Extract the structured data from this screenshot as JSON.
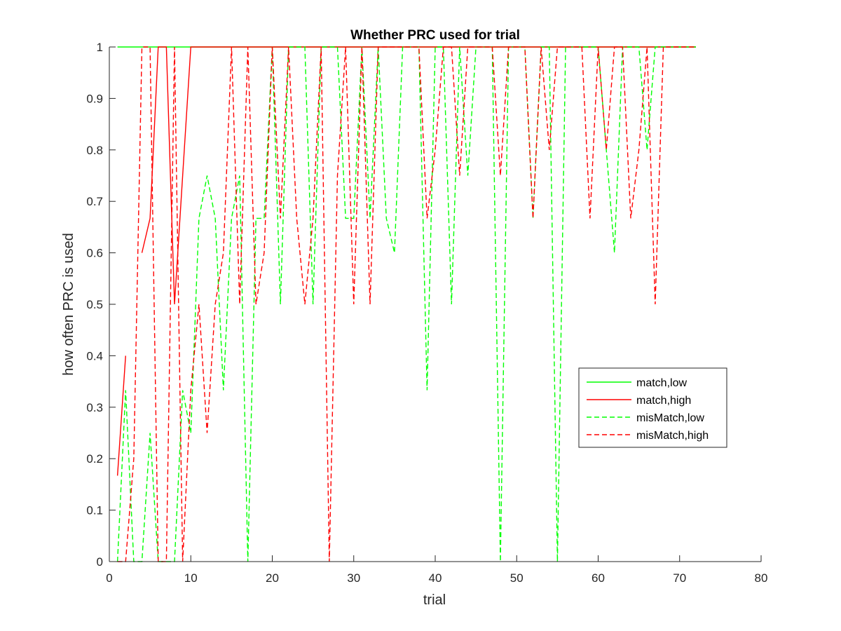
{
  "chart_data": {
    "type": "line",
    "title": "Whether PRC used for trial",
    "xlabel": "trial",
    "ylabel": "how often PRC is used",
    "xlim": [
      0,
      80
    ],
    "ylim": [
      0,
      1
    ],
    "xticks": [
      0,
      10,
      20,
      30,
      40,
      50,
      60,
      70,
      80
    ],
    "yticks": [
      0,
      0.1,
      0.2,
      0.3,
      0.4,
      0.5,
      0.6,
      0.7,
      0.8,
      0.9,
      1
    ],
    "grid": false,
    "legend_position": "right",
    "series": [
      {
        "name": "match,low",
        "color": "#00FF00",
        "dash": "solid",
        "points": [
          [
            1,
            1
          ],
          [
            2,
            1
          ],
          [
            3,
            1
          ],
          [
            4,
            1
          ],
          [
            5,
            1
          ],
          [
            6,
            1
          ],
          [
            7,
            1
          ],
          [
            8,
            1
          ],
          [
            9,
            1
          ],
          [
            10,
            1
          ],
          [
            12,
            1
          ],
          [
            14,
            1
          ],
          [
            16,
            1
          ],
          [
            18,
            1
          ],
          [
            20,
            1
          ],
          [
            22,
            1
          ],
          [
            24,
            1
          ],
          [
            26,
            1
          ],
          [
            28,
            1
          ],
          [
            30,
            1
          ],
          [
            32,
            1
          ],
          [
            34,
            1
          ],
          [
            36,
            1
          ],
          [
            38,
            1
          ],
          [
            40,
            1
          ],
          [
            42,
            1
          ],
          [
            44,
            1
          ],
          [
            46,
            1
          ],
          [
            48,
            1
          ],
          [
            50,
            1
          ],
          [
            52,
            1
          ],
          [
            54,
            1
          ],
          [
            56,
            1
          ],
          [
            58,
            1
          ],
          [
            60,
            1
          ],
          [
            62,
            1
          ],
          [
            64,
            1
          ],
          [
            66,
            1
          ],
          [
            68,
            1
          ],
          [
            70,
            1
          ],
          [
            72,
            1
          ]
        ]
      },
      {
        "name": "match,high",
        "color": "#FF0000",
        "dash": "solid",
        "points": [
          [
            1,
            0.167
          ],
          [
            2,
            0.4
          ],
          [
            null,
            null
          ],
          [
            4,
            0.6
          ],
          [
            5,
            0.667
          ],
          [
            6,
            1
          ],
          [
            7,
            1
          ],
          [
            8,
            0.5
          ],
          [
            9,
            0.75
          ],
          [
            10,
            1
          ],
          [
            11,
            1
          ],
          [
            12,
            1
          ],
          [
            14,
            1
          ],
          [
            16,
            1
          ],
          [
            18,
            1
          ],
          [
            20,
            1
          ],
          [
            22,
            1
          ],
          [
            24,
            1
          ],
          [
            26,
            1
          ],
          [
            28,
            1
          ],
          [
            30,
            1
          ],
          [
            32,
            1
          ],
          [
            34,
            1
          ],
          [
            36,
            1
          ],
          [
            38,
            1
          ],
          [
            40,
            1
          ],
          [
            42,
            1
          ],
          [
            44,
            1
          ],
          [
            46,
            1
          ],
          [
            48,
            1
          ],
          [
            50,
            1
          ],
          [
            52,
            1
          ],
          [
            54,
            1
          ],
          [
            56,
            1
          ],
          [
            58,
            1
          ],
          [
            60,
            1
          ],
          [
            62,
            1
          ],
          [
            64,
            1
          ],
          [
            66,
            1
          ],
          [
            68,
            1
          ],
          [
            70,
            1
          ],
          [
            72,
            1
          ]
        ]
      },
      {
        "name": "misMatch,low",
        "color": "#00FF00",
        "dash": "dashed",
        "points": [
          [
            1,
            0
          ],
          [
            2,
            0.333
          ],
          [
            3,
            0
          ],
          [
            4,
            0
          ],
          [
            5,
            0.25
          ],
          [
            6,
            0
          ],
          [
            7,
            0
          ],
          [
            8,
            0
          ],
          [
            9,
            0.333
          ],
          [
            10,
            0.25
          ],
          [
            11,
            0.667
          ],
          [
            12,
            0.75
          ],
          [
            13,
            0.667
          ],
          [
            14,
            0.333
          ],
          [
            15,
            0.667
          ],
          [
            16,
            0.75
          ],
          [
            17,
            0
          ],
          [
            18,
            0.667
          ],
          [
            19,
            0.667
          ],
          [
            20,
            1
          ],
          [
            21,
            0.5
          ],
          [
            22,
            1
          ],
          [
            23,
            1
          ],
          [
            24,
            1
          ],
          [
            25,
            0.5
          ],
          [
            26,
            1
          ],
          [
            27,
            1
          ],
          [
            28,
            1
          ],
          [
            29,
            0.667
          ],
          [
            30,
            0.667
          ],
          [
            31,
            1
          ],
          [
            32,
            0.667
          ],
          [
            33,
            1
          ],
          [
            34,
            0.667
          ],
          [
            35,
            0.6
          ],
          [
            36,
            1
          ],
          [
            37,
            1
          ],
          [
            38,
            1
          ],
          [
            39,
            0.333
          ],
          [
            40,
            1
          ],
          [
            41,
            1
          ],
          [
            42,
            0.5
          ],
          [
            43,
            1
          ],
          [
            44,
            0.75
          ],
          [
            45,
            1
          ],
          [
            46,
            1
          ],
          [
            47,
            1
          ],
          [
            48,
            0
          ],
          [
            49,
            1
          ],
          [
            50,
            1
          ],
          [
            51,
            1
          ],
          [
            52,
            0.667
          ],
          [
            53,
            1
          ],
          [
            54,
            1
          ],
          [
            55,
            0
          ],
          [
            56,
            1
          ],
          [
            57,
            1
          ],
          [
            58,
            1
          ],
          [
            59,
            1
          ],
          [
            60,
            1
          ],
          [
            61,
            0.8
          ],
          [
            62,
            0.6
          ],
          [
            63,
            1
          ],
          [
            64,
            1
          ],
          [
            65,
            1
          ],
          [
            66,
            0.8
          ],
          [
            67,
            1
          ],
          [
            68,
            1
          ],
          [
            69,
            1
          ],
          [
            70,
            1
          ],
          [
            71,
            1
          ],
          [
            72,
            1
          ]
        ]
      },
      {
        "name": "misMatch,high",
        "color": "#FF0000",
        "dash": "dashed",
        "points": [
          [
            1,
            0
          ],
          [
            2,
            0
          ],
          [
            3,
            0.2
          ],
          [
            4,
            1
          ],
          [
            5,
            1
          ],
          [
            6,
            0
          ],
          [
            7,
            0
          ],
          [
            8,
            1
          ],
          [
            9,
            0
          ],
          [
            10,
            0.333
          ],
          [
            11,
            0.5
          ],
          [
            12,
            0.25
          ],
          [
            13,
            0.5
          ],
          [
            14,
            0.6
          ],
          [
            15,
            1
          ],
          [
            16,
            0.5
          ],
          [
            17,
            1
          ],
          [
            18,
            0.5
          ],
          [
            19,
            0.6
          ],
          [
            20,
            1
          ],
          [
            21,
            0.667
          ],
          [
            22,
            1
          ],
          [
            23,
            0.667
          ],
          [
            24,
            0.5
          ],
          [
            25,
            0.667
          ],
          [
            26,
            1
          ],
          [
            27,
            0
          ],
          [
            28,
            0.75
          ],
          [
            29,
            1
          ],
          [
            30,
            0.5
          ],
          [
            31,
            1
          ],
          [
            32,
            0.5
          ],
          [
            33,
            1
          ],
          [
            34,
            1
          ],
          [
            35,
            1
          ],
          [
            36,
            1
          ],
          [
            37,
            1
          ],
          [
            38,
            1
          ],
          [
            39,
            0.667
          ],
          [
            40,
            0.8
          ],
          [
            41,
            1
          ],
          [
            42,
            1
          ],
          [
            43,
            0.75
          ],
          [
            44,
            1
          ],
          [
            45,
            1
          ],
          [
            46,
            1
          ],
          [
            47,
            1
          ],
          [
            48,
            0.75
          ],
          [
            49,
            1
          ],
          [
            50,
            1
          ],
          [
            51,
            1
          ],
          [
            52,
            0.667
          ],
          [
            53,
            1
          ],
          [
            54,
            0.8
          ],
          [
            55,
            1
          ],
          [
            56,
            1
          ],
          [
            57,
            1
          ],
          [
            58,
            1
          ],
          [
            59,
            0.667
          ],
          [
            60,
            1
          ],
          [
            61,
            0.8
          ],
          [
            62,
            1
          ],
          [
            63,
            1
          ],
          [
            64,
            0.667
          ],
          [
            65,
            0.8
          ],
          [
            66,
            1
          ],
          [
            67,
            0.5
          ],
          [
            68,
            1
          ],
          [
            69,
            1
          ],
          [
            70,
            1
          ],
          [
            71,
            1
          ],
          [
            72,
            1
          ]
        ]
      }
    ]
  }
}
